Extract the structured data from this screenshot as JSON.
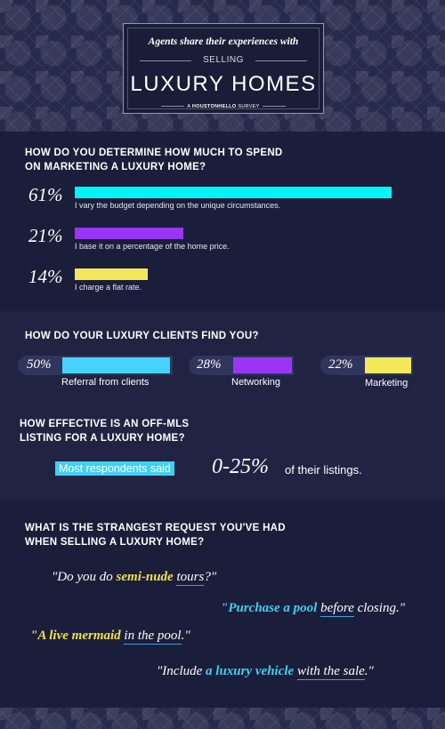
{
  "header": {
    "tagline": "Agents share their experiences with",
    "selling": "SELLING",
    "title": "LUXURY HOMES",
    "survey_prefix": "A",
    "survey_brand": "HOUSTONHELLO",
    "survey_suffix": "SURVEY"
  },
  "budget": {
    "question_line1": "HOW DO YOU DETERMINE HOW MUCH TO SPEND",
    "question_line2": "ON MARKETING A LUXURY HOME?",
    "items": [
      {
        "percent": "61%",
        "value": 61,
        "caption": "I vary the budget depending on the unique circumstances.",
        "color": "#00f5f8"
      },
      {
        "percent": "21%",
        "value": 21,
        "caption": "I base it on a percentage of the home price.",
        "color": "#9b35f5"
      },
      {
        "percent": "14%",
        "value": 14,
        "caption": "I charge a flat rate.",
        "color": "#f2e85a"
      }
    ]
  },
  "clients": {
    "question": "HOW DO YOUR LUXURY CLIENTS FIND YOU?",
    "items": [
      {
        "percent": "50%",
        "value": 50,
        "label": "Referral from clients",
        "color": "#45d3fb"
      },
      {
        "percent": "28%",
        "value": 28,
        "label": "Networking",
        "color": "#9b35f5"
      },
      {
        "percent": "22%",
        "value": 22,
        "label": "Marketing",
        "color": "#f2e85a"
      }
    ]
  },
  "mls": {
    "question_line1": "HOW EFFECTIVE IS AN OFF-MLS",
    "question_line2": "LISTING FOR A LUXURY HOME?",
    "highlight": "Most respondents said",
    "range": "0-25%",
    "tail": "of their listings."
  },
  "requests": {
    "question_line1": "WHAT IS THE STRANGEST REQUEST YOU'VE HAD",
    "question_line2": "WHEN SELLING A LUXURY HOME?",
    "q1": {
      "a": "\"Do you do ",
      "b": "semi-nude",
      "c": "tours",
      "d": "?\""
    },
    "q2": {
      "a": "\"Purchase a pool",
      "b": "before",
      "c": " closing.\""
    },
    "q3": {
      "a": "\"A live mermaid",
      "b": "in the pool",
      "c": ".\""
    },
    "q4": {
      "a": "\"Include ",
      "b": "a luxury vehicle",
      "c": "with the sale",
      "d": ".\""
    }
  },
  "colors": {
    "background": "#1a1d38",
    "cyan": "#00f5f8",
    "purple": "#9b35f5",
    "yellow": "#f2e85a"
  }
}
